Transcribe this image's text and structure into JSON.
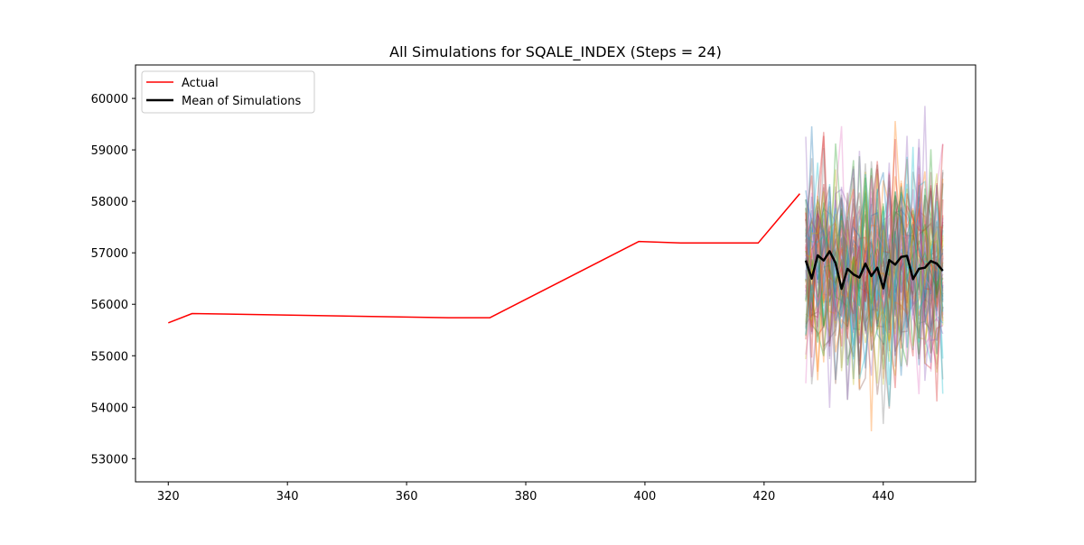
{
  "chart_data": {
    "type": "line",
    "title": "All Simulations for SQALE_INDEX (Steps = 24)",
    "xlabel": "",
    "ylabel": "",
    "xlim": [
      314.5,
      455.5
    ],
    "ylim": [
      52550,
      60650
    ],
    "x_ticks": [
      320,
      340,
      360,
      380,
      400,
      420,
      440
    ],
    "y_ticks": [
      53000,
      54000,
      55000,
      56000,
      57000,
      58000,
      59000,
      60000
    ],
    "legend": {
      "position": "upper-left",
      "entries": [
        "Actual",
        "Mean of Simulations"
      ]
    },
    "grid": false,
    "series": [
      {
        "name": "Actual",
        "color": "#ff0000",
        "x": [
          320,
          324,
          367,
          374,
          399,
          406,
          419,
          426
        ],
        "y": [
          55640,
          55820,
          55740,
          55740,
          57220,
          57190,
          57190,
          58150
        ]
      },
      {
        "name": "Mean of Simulations",
        "color": "#000000",
        "x": [
          427,
          428,
          429,
          430,
          431,
          432,
          433,
          434,
          435,
          436,
          437,
          438,
          439,
          440,
          441,
          442,
          443,
          444,
          445,
          446,
          447,
          448,
          449,
          450
        ],
        "y": [
          56850,
          56500,
          56950,
          56850,
          57030,
          56800,
          56300,
          56690,
          56580,
          56520,
          56790,
          56550,
          56710,
          56310,
          56860,
          56770,
          56920,
          56940,
          56490,
          56690,
          56710,
          56840,
          56790,
          56650
        ]
      }
    ],
    "simulations": {
      "count": 60,
      "x_start": 427,
      "x_end": 450,
      "approx_range": [
        52900,
        60300
      ],
      "opacity": 0.35
    }
  }
}
